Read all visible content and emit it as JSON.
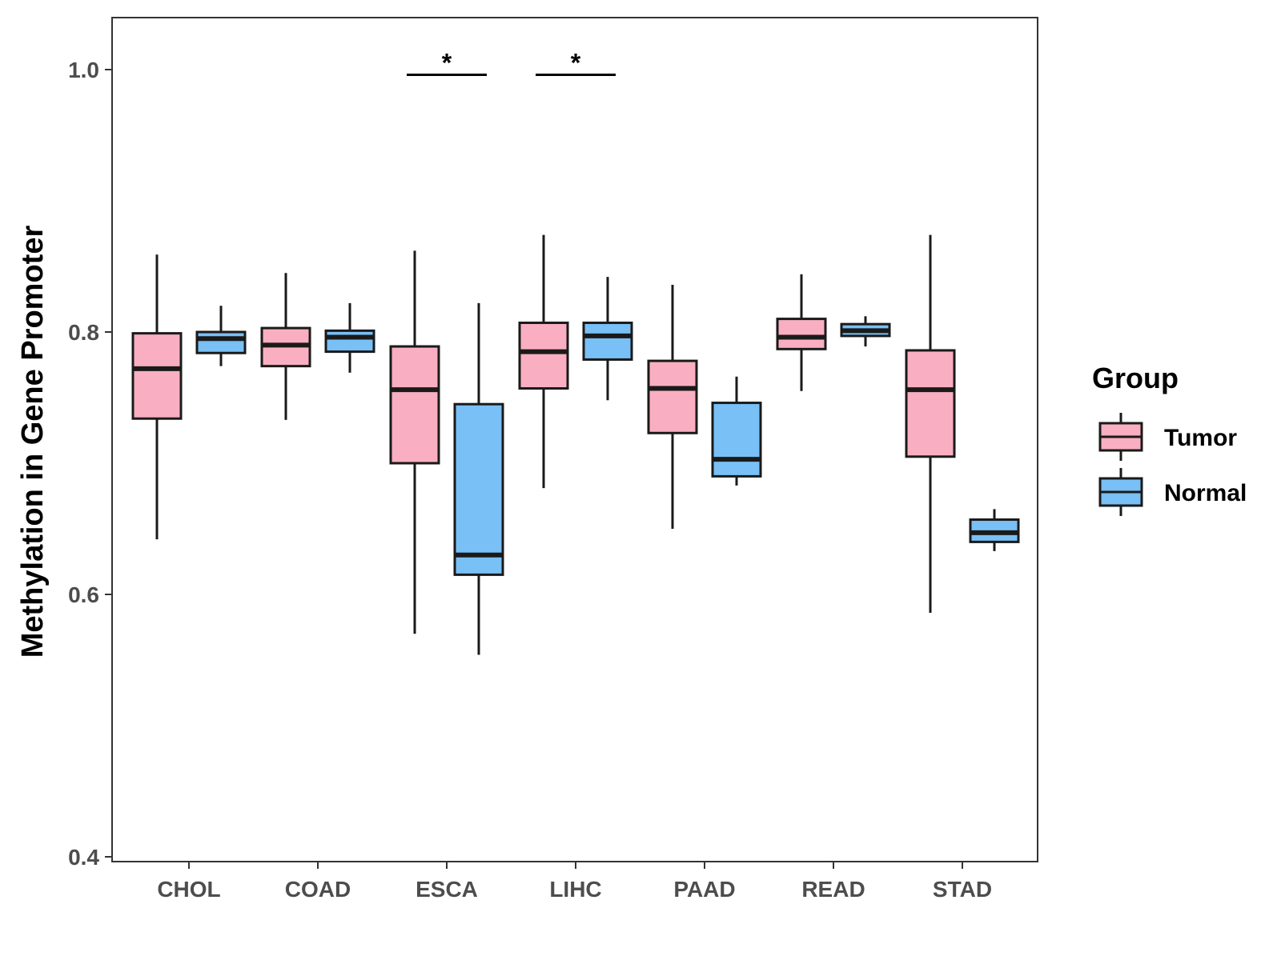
{
  "chart_data": {
    "type": "boxplot",
    "title": "",
    "xlabel": "",
    "ylabel": "Methylation in Gene Promoter",
    "ylim": [
      0.4,
      1.04
    ],
    "yticks": [
      0.4,
      0.6,
      0.8,
      1.0
    ],
    "ytick_labels": [
      "0.4",
      "0.6",
      "0.8",
      "1.0"
    ],
    "grid": false,
    "categories": [
      "CHOL",
      "COAD",
      "ESCA",
      "LIHC",
      "PAAD",
      "READ",
      "STAD"
    ],
    "legend": {
      "title": "Group",
      "position": "right",
      "entries": [
        {
          "name": "Tumor",
          "color": "#F9AFC1"
        },
        {
          "name": "Normal",
          "color": "#78C0F5"
        }
      ]
    },
    "series": [
      {
        "name": "Tumor",
        "color": "#F9AFC1",
        "boxes": [
          {
            "category": "CHOL",
            "whisker_low": 0.642,
            "q1": 0.734,
            "median": 0.772,
            "q3": 0.799,
            "whisker_high": 0.859
          },
          {
            "category": "COAD",
            "whisker_low": 0.733,
            "q1": 0.774,
            "median": 0.79,
            "q3": 0.803,
            "whisker_high": 0.845
          },
          {
            "category": "ESCA",
            "whisker_low": 0.57,
            "q1": 0.7,
            "median": 0.756,
            "q3": 0.789,
            "whisker_high": 0.862
          },
          {
            "category": "LIHC",
            "whisker_low": 0.681,
            "q1": 0.757,
            "median": 0.785,
            "q3": 0.807,
            "whisker_high": 0.874
          },
          {
            "category": "PAAD",
            "whisker_low": 0.65,
            "q1": 0.723,
            "median": 0.757,
            "q3": 0.778,
            "whisker_high": 0.836
          },
          {
            "category": "READ",
            "whisker_low": 0.755,
            "q1": 0.787,
            "median": 0.796,
            "q3": 0.81,
            "whisker_high": 0.844
          },
          {
            "category": "STAD",
            "whisker_low": 0.586,
            "q1": 0.705,
            "median": 0.756,
            "q3": 0.786,
            "whisker_high": 0.874
          }
        ]
      },
      {
        "name": "Normal",
        "color": "#78C0F5",
        "boxes": [
          {
            "category": "CHOL",
            "whisker_low": 0.774,
            "q1": 0.784,
            "median": 0.795,
            "q3": 0.8,
            "whisker_high": 0.82
          },
          {
            "category": "COAD",
            "whisker_low": 0.769,
            "q1": 0.785,
            "median": 0.796,
            "q3": 0.801,
            "whisker_high": 0.822
          },
          {
            "category": "ESCA",
            "whisker_low": 0.554,
            "q1": 0.615,
            "median": 0.63,
            "q3": 0.745,
            "whisker_high": 0.822
          },
          {
            "category": "LIHC",
            "whisker_low": 0.748,
            "q1": 0.779,
            "median": 0.797,
            "q3": 0.807,
            "whisker_high": 0.842
          },
          {
            "category": "PAAD",
            "whisker_low": 0.683,
            "q1": 0.69,
            "median": 0.703,
            "q3": 0.746,
            "whisker_high": 0.766
          },
          {
            "category": "READ",
            "whisker_low": 0.789,
            "q1": 0.797,
            "median": 0.801,
            "q3": 0.806,
            "whisker_high": 0.812
          },
          {
            "category": "STAD",
            "whisker_low": 0.633,
            "q1": 0.64,
            "median": 0.647,
            "q3": 0.657,
            "whisker_high": 0.665
          }
        ]
      }
    ],
    "annotations": [
      {
        "category": "ESCA",
        "label": "*",
        "y": 0.996
      },
      {
        "category": "LIHC",
        "label": "*",
        "y": 0.996
      }
    ]
  }
}
